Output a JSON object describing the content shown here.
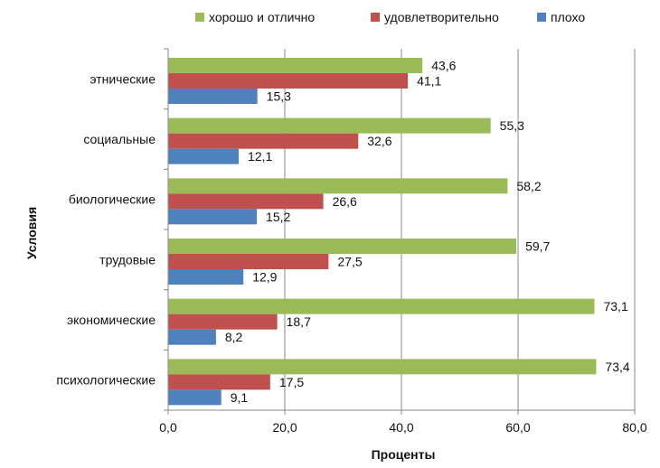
{
  "chart_data": {
    "type": "bar",
    "orientation": "horizontal",
    "xlabel": "Проценты",
    "ylabel": "Условия",
    "xlim": [
      0,
      80
    ],
    "x_ticks": [
      "0,0",
      "20,0",
      "40,0",
      "60,0",
      "80,0"
    ],
    "grid": "vertical",
    "legend_position": "top",
    "categories": [
      "этнические",
      "социальные",
      "биологические",
      "трудовые",
      "экономические",
      "психологические"
    ],
    "series": [
      {
        "name": "хорошо и отлично",
        "color": "#9bbb59",
        "values": [
          43.6,
          55.3,
          58.2,
          59.7,
          73.1,
          73.4
        ],
        "labels": [
          "43,6",
          "55,3",
          "58,2",
          "59,7",
          "73,1",
          "73,4"
        ]
      },
      {
        "name": "удовлетворительно",
        "color": "#c0504d",
        "values": [
          41.1,
          32.6,
          26.6,
          27.5,
          18.7,
          17.5
        ],
        "labels": [
          "41,1",
          "32,6",
          "26,6",
          "27,5",
          "18,7",
          "17,5"
        ]
      },
      {
        "name": "плохо",
        "color": "#4f81bd",
        "values": [
          15.3,
          12.1,
          15.2,
          12.9,
          8.2,
          9.1
        ],
        "labels": [
          "15,3",
          "12,1",
          "15,2",
          "12,9",
          "8,2",
          "9,1"
        ]
      }
    ]
  }
}
